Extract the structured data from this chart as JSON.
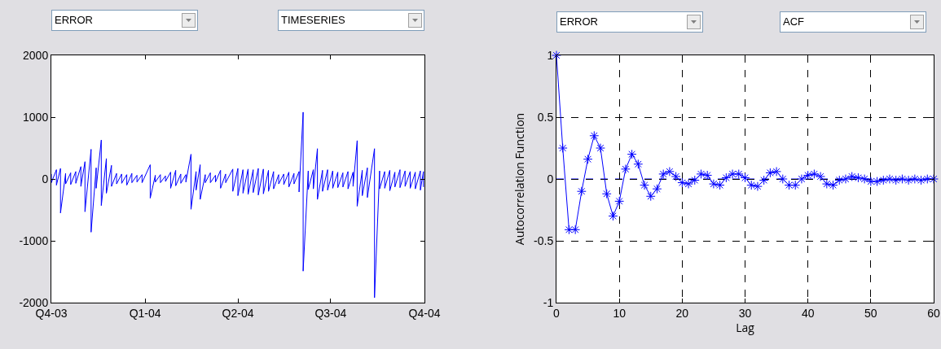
{
  "chart_data": [
    {
      "type": "line",
      "annotations": [
        "ERROR",
        "TIMESERIES"
      ],
      "x": [
        "2003-10-01",
        "2003-10-01",
        "2003-10-06",
        "2003-10-06",
        "2003-10-10",
        "2003-10-10",
        "2003-10-15",
        "2003-10-15",
        "2003-10-20",
        "2003-10-20",
        "2003-10-25",
        "2003-10-25",
        "2003-10-30",
        "2003-10-30",
        "2003-11-03",
        "2003-11-03",
        "2003-11-09",
        "2003-11-09",
        "2003-11-14",
        "2003-11-14",
        "2003-11-19",
        "2003-11-19",
        "2003-11-24",
        "2003-11-24",
        "2003-11-29",
        "2003-11-29",
        "2003-12-04",
        "2003-12-04",
        "2003-12-09",
        "2003-12-09",
        "2003-12-14",
        "2003-12-14",
        "2003-12-19",
        "2003-12-19",
        "2003-12-24",
        "2003-12-24",
        "2003-12-29",
        "2003-12-29",
        "2004-01-06",
        "2004-01-06",
        "2004-01-11",
        "2004-01-11",
        "2004-01-16",
        "2004-01-16",
        "2004-01-21",
        "2004-01-21",
        "2004-01-26",
        "2004-01-26",
        "2004-01-31",
        "2004-01-31",
        "2004-02-05",
        "2004-02-05",
        "2004-02-10",
        "2004-02-10",
        "2004-02-15",
        "2004-02-15",
        "2004-02-20",
        "2004-02-20",
        "2004-02-24",
        "2004-02-24",
        "2004-02-29",
        "2004-02-29",
        "2004-03-05",
        "2004-03-05",
        "2004-03-10",
        "2004-03-10",
        "2004-03-15",
        "2004-03-15",
        "2004-03-20",
        "2004-03-20",
        "2004-03-27",
        "2004-03-27",
        "2004-04-01",
        "2004-04-01",
        "2004-04-06",
        "2004-04-06",
        "2004-04-11",
        "2004-04-11",
        "2004-04-16",
        "2004-04-16",
        "2004-04-21",
        "2004-04-21",
        "2004-04-26",
        "2004-04-26",
        "2004-05-01",
        "2004-05-01",
        "2004-05-06",
        "2004-05-06",
        "2004-05-11",
        "2004-05-11",
        "2004-05-16",
        "2004-05-16",
        "2004-05-21",
        "2004-05-21",
        "2004-05-26",
        "2004-05-26",
        "2004-05-31",
        "2004-05-31",
        "2004-06-04",
        "2004-06-04",
        "2004-06-09",
        "2004-06-09",
        "2004-06-14",
        "2004-06-14",
        "2004-06-18",
        "2004-06-18",
        "2004-06-23",
        "2004-06-23",
        "2004-06-28",
        "2004-06-28",
        "2004-07-03",
        "2004-07-03",
        "2004-07-08",
        "2004-07-08",
        "2004-07-13",
        "2004-07-13",
        "2004-07-18",
        "2004-07-18",
        "2004-07-23",
        "2004-07-23",
        "2004-07-27",
        "2004-07-27",
        "2004-08-01",
        "2004-08-01",
        "2004-08-06",
        "2004-08-06",
        "2004-08-13",
        "2004-08-13",
        "2004-08-18",
        "2004-08-18",
        "2004-08-23",
        "2004-08-23",
        "2004-08-28",
        "2004-08-28",
        "2004-09-02",
        "2004-09-02",
        "2004-09-07",
        "2004-09-07",
        "2004-09-12",
        "2004-09-12",
        "2004-09-17",
        "2004-09-17",
        "2004-09-22",
        "2004-09-22",
        "2004-09-27",
        "2004-09-27",
        "2004-09-30",
        "2004-09-30"
      ],
      "series": [
        {
          "color": "#0000ff",
          "values": [
            80,
            -60,
            150,
            -100,
            170,
            -550,
            90,
            -80,
            100,
            -90,
            120,
            -70,
            200,
            -120,
            280,
            -530,
            480,
            -860,
            180,
            -150,
            630,
            -430,
            330,
            -230,
            220,
            -120,
            90,
            -80,
            80,
            -70,
            70,
            -100,
            90,
            -60,
            60,
            -50,
            70,
            -60,
            230,
            -310,
            60,
            -50,
            70,
            -60,
            50,
            -40,
            110,
            -150,
            140,
            -110,
            80,
            -70,
            70,
            -50,
            400,
            -490,
            120,
            -180,
            230,
            -330,
            70,
            -60,
            100,
            -60,
            60,
            -50,
            140,
            -150,
            80,
            -60,
            160,
            -200,
            170,
            -270,
            150,
            -230,
            160,
            -250,
            150,
            -220,
            170,
            -260,
            160,
            -240,
            140,
            -200,
            120,
            -160,
            70,
            -80,
            80,
            -90,
            110,
            -130,
            90,
            -80,
            120,
            -210,
            1080,
            -1490,
            130,
            -170,
            150,
            -160,
            490,
            -330,
            140,
            -200,
            150,
            -180,
            130,
            -150,
            110,
            -140,
            100,
            -130,
            120,
            -160,
            110,
            -120,
            620,
            -440,
            140,
            -270,
            180,
            -300,
            490,
            -1920,
            130,
            -160,
            120,
            -150,
            140,
            -190,
            110,
            -130,
            150,
            -140,
            130,
            -120,
            120,
            -150,
            110,
            -160,
            130,
            -180,
            120,
            -130
          ]
        }
      ],
      "xlim": [
        "2003-10-01",
        "2004-10-01"
      ],
      "xticks": [
        {
          "value": "2003-10-01",
          "label": "Q4-03"
        },
        {
          "value": "2004-01-01",
          "label": "Q1-04"
        },
        {
          "value": "2004-04-01",
          "label": "Q2-04"
        },
        {
          "value": "2004-07-01",
          "label": "Q3-04"
        },
        {
          "value": "2004-10-01",
          "label": "Q4-04"
        }
      ],
      "ylim": [
        -2000,
        2000
      ],
      "yticks": [
        -2000,
        -1000,
        0,
        1000,
        2000
      ],
      "grid": false,
      "marker": "none",
      "line_style": "solid"
    },
    {
      "type": "line",
      "annotations": [
        "ERROR",
        "ACF"
      ],
      "xlabel": "Lag",
      "ylabel": "Autocorrelation Function",
      "x": [
        0,
        1,
        2,
        3,
        4,
        5,
        6,
        7,
        8,
        9,
        10,
        11,
        12,
        13,
        14,
        15,
        16,
        17,
        18,
        19,
        20,
        21,
        22,
        23,
        24,
        25,
        26,
        27,
        28,
        29,
        30,
        31,
        32,
        33,
        34,
        35,
        36,
        37,
        38,
        39,
        40,
        41,
        42,
        43,
        44,
        45,
        46,
        47,
        48,
        49,
        50,
        51,
        52,
        53,
        54,
        55,
        56,
        57,
        58,
        59,
        60
      ],
      "series": [
        {
          "color": "#0000ff",
          "values": [
            1,
            0.25,
            -0.41,
            -0.41,
            -0.1,
            0.16,
            0.35,
            0.25,
            -0.12,
            -0.3,
            -0.18,
            0.08,
            0.2,
            0.12,
            -0.05,
            -0.14,
            -0.08,
            0.04,
            0.06,
            0.02,
            -0.03,
            -0.04,
            -0.01,
            0.04,
            0.03,
            -0.04,
            -0.05,
            0.01,
            0.04,
            0.04,
            0.01,
            -0.05,
            -0.06,
            -0.01,
            0.05,
            0.06,
            0,
            -0.05,
            -0.05,
            0,
            0.03,
            0.04,
            0.02,
            -0.04,
            -0.05,
            -0.01,
            0,
            0.02,
            0.01,
            0,
            -0.02,
            -0.02,
            -0.01,
            0,
            -0.01,
            0,
            -0.01,
            0,
            -0.01,
            0,
            0
          ]
        }
      ],
      "xlim": [
        0,
        60
      ],
      "xticks": [
        0,
        10,
        20,
        30,
        40,
        50,
        60
      ],
      "ylim": [
        -1,
        1
      ],
      "yticks": [
        -1,
        -0.5,
        0,
        0.5,
        1
      ],
      "ref_lines": [
        {
          "axis": "y",
          "value": 0,
          "color": "#0000ff",
          "line_style": "dashed"
        }
      ],
      "grid": true,
      "marker": "cross",
      "line_style": "solid"
    }
  ]
}
